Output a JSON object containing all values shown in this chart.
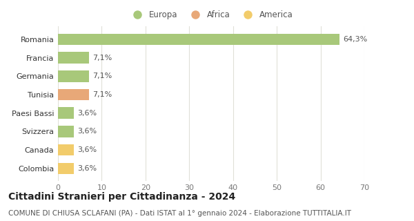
{
  "categories": [
    "Colombia",
    "Canada",
    "Svizzera",
    "Paesi Bassi",
    "Tunisia",
    "Germania",
    "Francia",
    "Romania"
  ],
  "values": [
    3.6,
    3.6,
    3.6,
    3.6,
    7.1,
    7.1,
    7.1,
    64.3
  ],
  "colors": [
    "#f2cc6b",
    "#f2cc6b",
    "#a8c87a",
    "#a8c87a",
    "#e8a878",
    "#a8c87a",
    "#a8c87a",
    "#a8c87a"
  ],
  "bar_labels": [
    "3,6%",
    "3,6%",
    "3,6%",
    "3,6%",
    "7,1%",
    "7,1%",
    "7,1%",
    "64,3%"
  ],
  "legend_entries": [
    {
      "label": "Europa",
      "color": "#a8c87a"
    },
    {
      "label": "Africa",
      "color": "#e8a878"
    },
    {
      "label": "America",
      "color": "#f2cc6b"
    }
  ],
  "xlim": [
    0,
    70
  ],
  "xticks": [
    0,
    10,
    20,
    30,
    40,
    50,
    60,
    70
  ],
  "title": "Cittadini Stranieri per Cittadinanza - 2024",
  "subtitle": "COMUNE DI CHIUSA SCLAFANI (PA) - Dati ISTAT al 1° gennaio 2024 - Elaborazione TUTTITALIA.IT",
  "background_color": "#ffffff",
  "grid_color": "#e0e0d8",
  "title_fontsize": 10,
  "subtitle_fontsize": 7.5,
  "label_fontsize": 8,
  "tick_fontsize": 8,
  "bar_height": 0.62
}
